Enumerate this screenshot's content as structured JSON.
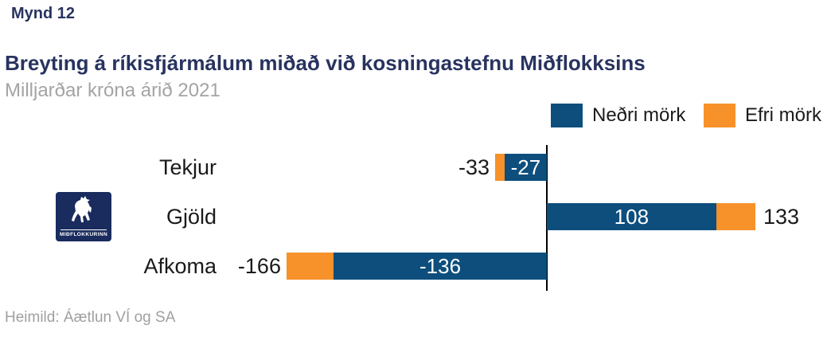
{
  "figure_label": "Mynd 12",
  "title": "Breyting á ríkisfjármálum miðað við kosningastefnu Miðflokksins",
  "subtitle": "Milljarðar króna árið 2021",
  "source": "Heimild: Áætlun VÍ og SA",
  "logo": {
    "text": "MIÐFLOKKURINN",
    "icon": "rearing-horse-icon",
    "background_color": "#1a2b5e"
  },
  "colors": {
    "title_navy": "#28335f",
    "subtitle_gray": "#a4a4a4",
    "lower_bound_blue": "#0d4e7d",
    "upper_bound_orange": "#f7912a",
    "axis_black": "#000000",
    "label_black": "#1a1a1a"
  },
  "chart_data": {
    "type": "bar",
    "orientation": "horizontal",
    "title": "Breyting á ríkisfjármálum miðað við kosningastefnu Miðflokksins",
    "subtitle": "Milljarðar króna árið 2021",
    "unit": "Milljarðar króna",
    "year": "2021",
    "categories": [
      "Tekjur",
      "Gjöld",
      "Afkoma"
    ],
    "series": [
      {
        "name": "Neðri mörk",
        "color": "#0d4e7d",
        "values": [
          -27,
          108,
          -136
        ]
      },
      {
        "name": "Efri mörk",
        "color": "#f7912a",
        "values": [
          -33,
          133,
          -166
        ]
      }
    ],
    "value_labels_inside_bar": [
      "-27",
      "108",
      "-136"
    ],
    "value_labels_outside_bar": [
      "-33",
      "133",
      "-166"
    ],
    "xlim": [
      -200,
      182
    ],
    "zero_baseline": true,
    "grid": false,
    "legend_position": "top-right"
  }
}
